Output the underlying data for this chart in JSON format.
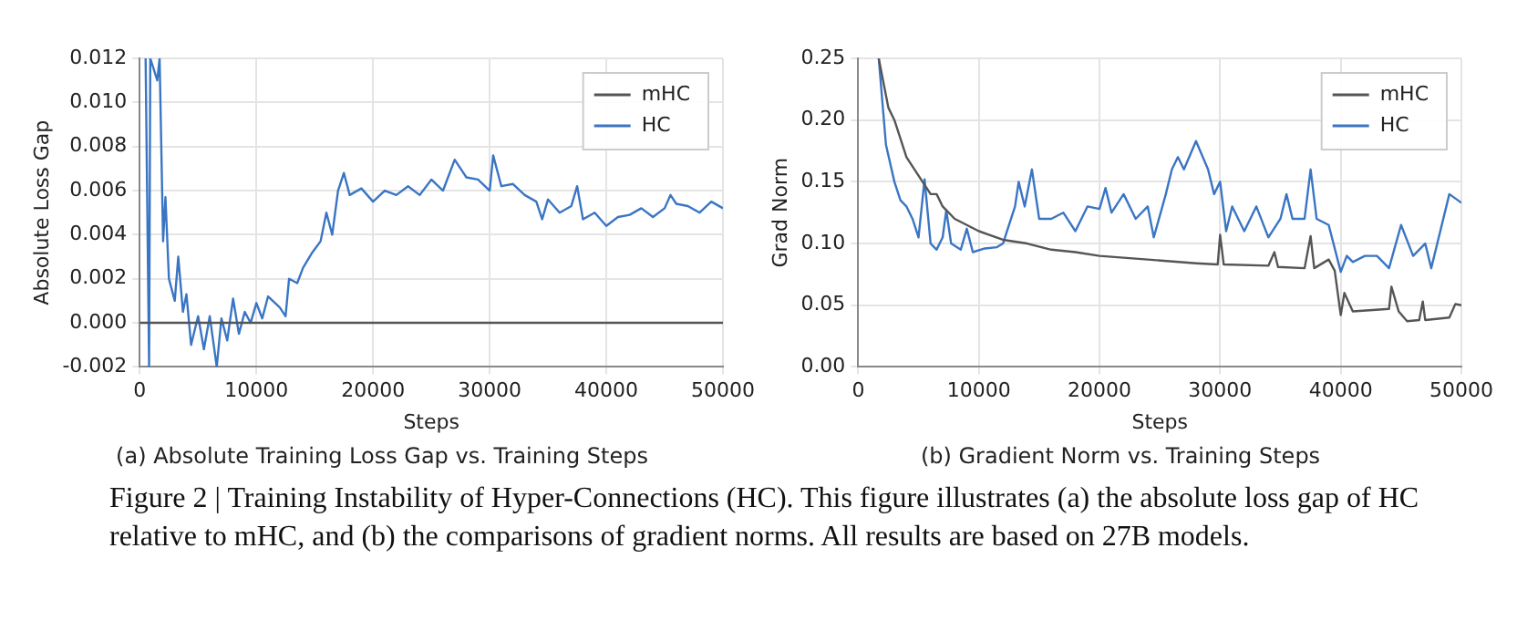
{
  "chart_data": [
    {
      "type": "line",
      "title": "(a) Absolute Training Loss Gap vs. Training Steps",
      "xlabel": "Steps",
      "ylabel": "Absolute Loss Gap",
      "xlim": [
        0,
        50000
      ],
      "xticks": [
        0,
        10000,
        20000,
        30000,
        40000,
        50000
      ],
      "ylim": [
        -0.002,
        0.012
      ],
      "yticks": [
        -0.002,
        {
          "value": 0,
          "label": "0.000"
        },
        0.002,
        0.004,
        0.006,
        0.008,
        {
          "value": 0.01,
          "label": "0.010"
        },
        0.012
      ],
      "grid": true,
      "legend": "top right",
      "series": [
        {
          "name": "mHC",
          "color": "#555555",
          "x": [
            0,
            50000
          ],
          "values": [
            0,
            0
          ]
        },
        {
          "name": "HC",
          "color": "#3a75c4",
          "x": [
            500,
            800,
            900,
            1500,
            1700,
            2000,
            2200,
            2500,
            3000,
            3300,
            3700,
            4000,
            4400,
            5000,
            5500,
            6000,
            6600,
            7000,
            7500,
            8000,
            8500,
            9000,
            9500,
            10000,
            10500,
            11000,
            12000,
            12500,
            12800,
            13500,
            14000,
            14800,
            15500,
            16000,
            16500,
            17000,
            17500,
            18000,
            19000,
            20000,
            21000,
            22000,
            23000,
            24000,
            25000,
            26000,
            27000,
            28000,
            29000,
            30000,
            30300,
            31000,
            32000,
            33000,
            34000,
            34500,
            35000,
            36000,
            37000,
            37500,
            38000,
            39000,
            40000,
            41000,
            42000,
            43000,
            44000,
            45000,
            45500,
            46000,
            47000,
            48000,
            49000,
            50000
          ],
          "values": [
            0.012,
            -0.002,
            0.012,
            0.011,
            0.012,
            0.0037,
            0.0057,
            0.002,
            0.001,
            0.003,
            0.0005,
            0.0013,
            -0.001,
            0.0003,
            -0.0012,
            0.0003,
            -0.002,
            0.0002,
            -0.0008,
            0.0011,
            -0.0005,
            0.0005,
            0,
            0.0009,
            0.0002,
            0.0012,
            0.0007,
            0.0003,
            0.002,
            0.0018,
            0.0025,
            0.0032,
            0.0037,
            0.005,
            0.004,
            0.006,
            0.0068,
            0.0058,
            0.0061,
            0.0055,
            0.006,
            0.0058,
            0.0062,
            0.0058,
            0.0065,
            0.006,
            0.0074,
            0.0066,
            0.0065,
            0.006,
            0.0076,
            0.0062,
            0.0063,
            0.0058,
            0.0055,
            0.0047,
            0.0056,
            0.005,
            0.0053,
            0.0062,
            0.0047,
            0.005,
            0.0044,
            0.0048,
            0.0049,
            0.0052,
            0.0048,
            0.0052,
            0.0058,
            0.0054,
            0.0053,
            0.005,
            0.0055,
            0.0052
          ]
        }
      ]
    },
    {
      "type": "line",
      "title": "(b) Gradient Norm vs. Training Steps",
      "xlabel": "Steps",
      "ylabel": "Grad Norm",
      "xlim": [
        0,
        50000
      ],
      "xticks": [
        0,
        10000,
        20000,
        30000,
        40000,
        50000
      ],
      "ylim": [
        0,
        0.25
      ],
      "yticks": [
        {
          "value": 0,
          "label": "0.00"
        },
        0.05,
        {
          "value": 0.1,
          "label": "0.10"
        },
        0.15,
        {
          "value": 0.2,
          "label": "0.20"
        },
        0.25
      ],
      "grid": true,
      "legend": "top right",
      "annotations": [
        "Figure 2 | Training Instability of Hyper-Connections (HC). This figure illustrates (a) the absolute loss gap of HC relative to mHC, and (b) the comparisons of gradient norms. All results are based on 27B models."
      ],
      "series": [
        {
          "name": "mHC",
          "color": "#555555",
          "x": [
            1700,
            2500,
            3000,
            4000,
            5000,
            6000,
            6500,
            7000,
            8000,
            10000,
            12000,
            14000,
            16000,
            18000,
            20000,
            24000,
            28000,
            29800,
            30000,
            30300,
            34000,
            34500,
            34800,
            37000,
            37500,
            37800,
            39000,
            39500,
            40000,
            40300,
            41000,
            44000,
            44200,
            44800,
            45500,
            46500,
            46800,
            47000,
            49000,
            49500,
            50000
          ],
          "values": [
            0.25,
            0.21,
            0.2,
            0.17,
            0.155,
            0.14,
            0.14,
            0.13,
            0.12,
            0.11,
            0.103,
            0.1,
            0.095,
            0.093,
            0.09,
            0.087,
            0.084,
            0.083,
            0.107,
            0.083,
            0.082,
            0.093,
            0.081,
            0.08,
            0.106,
            0.08,
            0.087,
            0.078,
            0.042,
            0.06,
            0.045,
            0.047,
            0.065,
            0.045,
            0.037,
            0.038,
            0.053,
            0.038,
            0.04,
            0.051,
            0.05
          ]
        },
        {
          "name": "HC",
          "color": "#3a75c4",
          "x": [
            1700,
            2300,
            3000,
            3500,
            4000,
            4500,
            5000,
            5500,
            6000,
            6500,
            7000,
            7300,
            7700,
            8500,
            9000,
            9500,
            10500,
            11500,
            12000,
            13000,
            13300,
            13800,
            14400,
            15000,
            16000,
            17000,
            18000,
            19000,
            20000,
            20500,
            21000,
            22000,
            23000,
            24000,
            24500,
            25500,
            26000,
            26500,
            27000,
            28000,
            29000,
            29500,
            30000,
            30500,
            31000,
            32000,
            33000,
            34000,
            35000,
            35500,
            36000,
            37000,
            37500,
            38000,
            39000,
            40000,
            40500,
            41000,
            42000,
            43000,
            44000,
            45000,
            46000,
            47000,
            47500,
            48000,
            49000,
            50000
          ],
          "values": [
            0.25,
            0.18,
            0.15,
            0.135,
            0.13,
            0.12,
            0.105,
            0.152,
            0.1,
            0.095,
            0.105,
            0.127,
            0.1,
            0.095,
            0.112,
            0.093,
            0.096,
            0.097,
            0.1,
            0.13,
            0.15,
            0.13,
            0.16,
            0.12,
            0.12,
            0.125,
            0.11,
            0.13,
            0.128,
            0.145,
            0.125,
            0.14,
            0.12,
            0.13,
            0.105,
            0.14,
            0.16,
            0.17,
            0.16,
            0.183,
            0.16,
            0.14,
            0.15,
            0.11,
            0.13,
            0.11,
            0.13,
            0.105,
            0.12,
            0.14,
            0.12,
            0.12,
            0.16,
            0.12,
            0.115,
            0.077,
            0.09,
            0.085,
            0.09,
            0.09,
            0.08,
            0.115,
            0.09,
            0.1,
            0.08,
            0.1,
            0.14,
            0.133
          ]
        }
      ]
    }
  ]
}
